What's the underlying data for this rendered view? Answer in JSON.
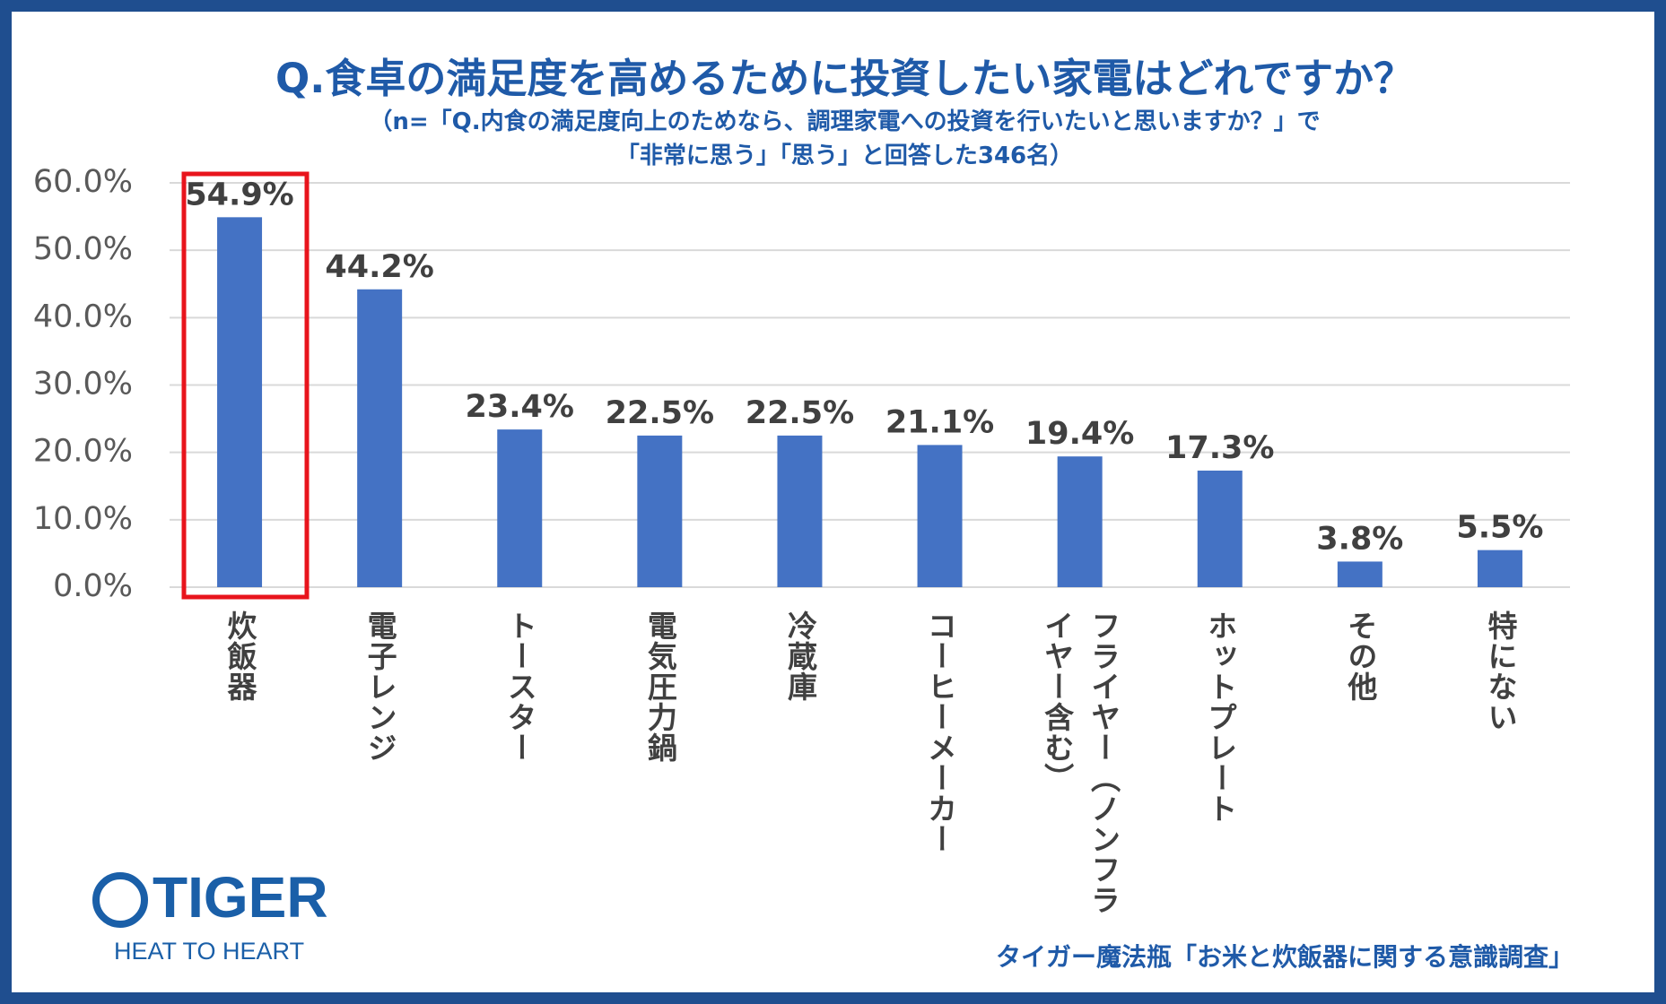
{
  "chart_data": {
    "type": "bar",
    "title": "Q.食卓の満足度を高めるために投資したい家電はどれですか？",
    "subtitle": [
      "（n=「Q.内食の満足度向上のためなら、調理家電への投資を行いたいと思いますか？」で",
      "「非常に思う」「思う」と回答した346名）"
    ],
    "categories": [
      "炊飯器",
      "電子レンジ",
      "トースター",
      "電気圧力鍋",
      "冷蔵庫",
      "コーヒーメーカー",
      "フライヤー（ノンフライヤー含む）",
      "ホットプレート",
      "その他",
      "特にない"
    ],
    "values": [
      54.9,
      44.2,
      23.4,
      22.5,
      22.5,
      21.1,
      19.4,
      17.3,
      3.8,
      5.5
    ],
    "value_labels": [
      "54.9%",
      "44.2%",
      "23.4%",
      "22.5%",
      "22.5%",
      "21.1%",
      "19.4%",
      "17.3%",
      "3.8%",
      "5.5%"
    ],
    "color": "#4472c4",
    "ylim": [
      0,
      60
    ],
    "yticks": [
      {
        "value": 0,
        "label": "0.0%"
      },
      {
        "value": 10,
        "label": "10.0%"
      },
      {
        "value": 20,
        "label": "20.0%"
      },
      {
        "value": 30,
        "label": "30.0%"
      },
      {
        "value": 40,
        "label": "40.0%"
      },
      {
        "value": 50,
        "label": "50.0%"
      },
      {
        "value": 60,
        "label": "60.0%"
      }
    ],
    "grid": true,
    "source": "タイガー魔法瓶「お米と炊飯器に関する意識調査」"
  },
  "logo": {
    "name": "TIGER",
    "tagline": "HEAT TO HEART"
  }
}
